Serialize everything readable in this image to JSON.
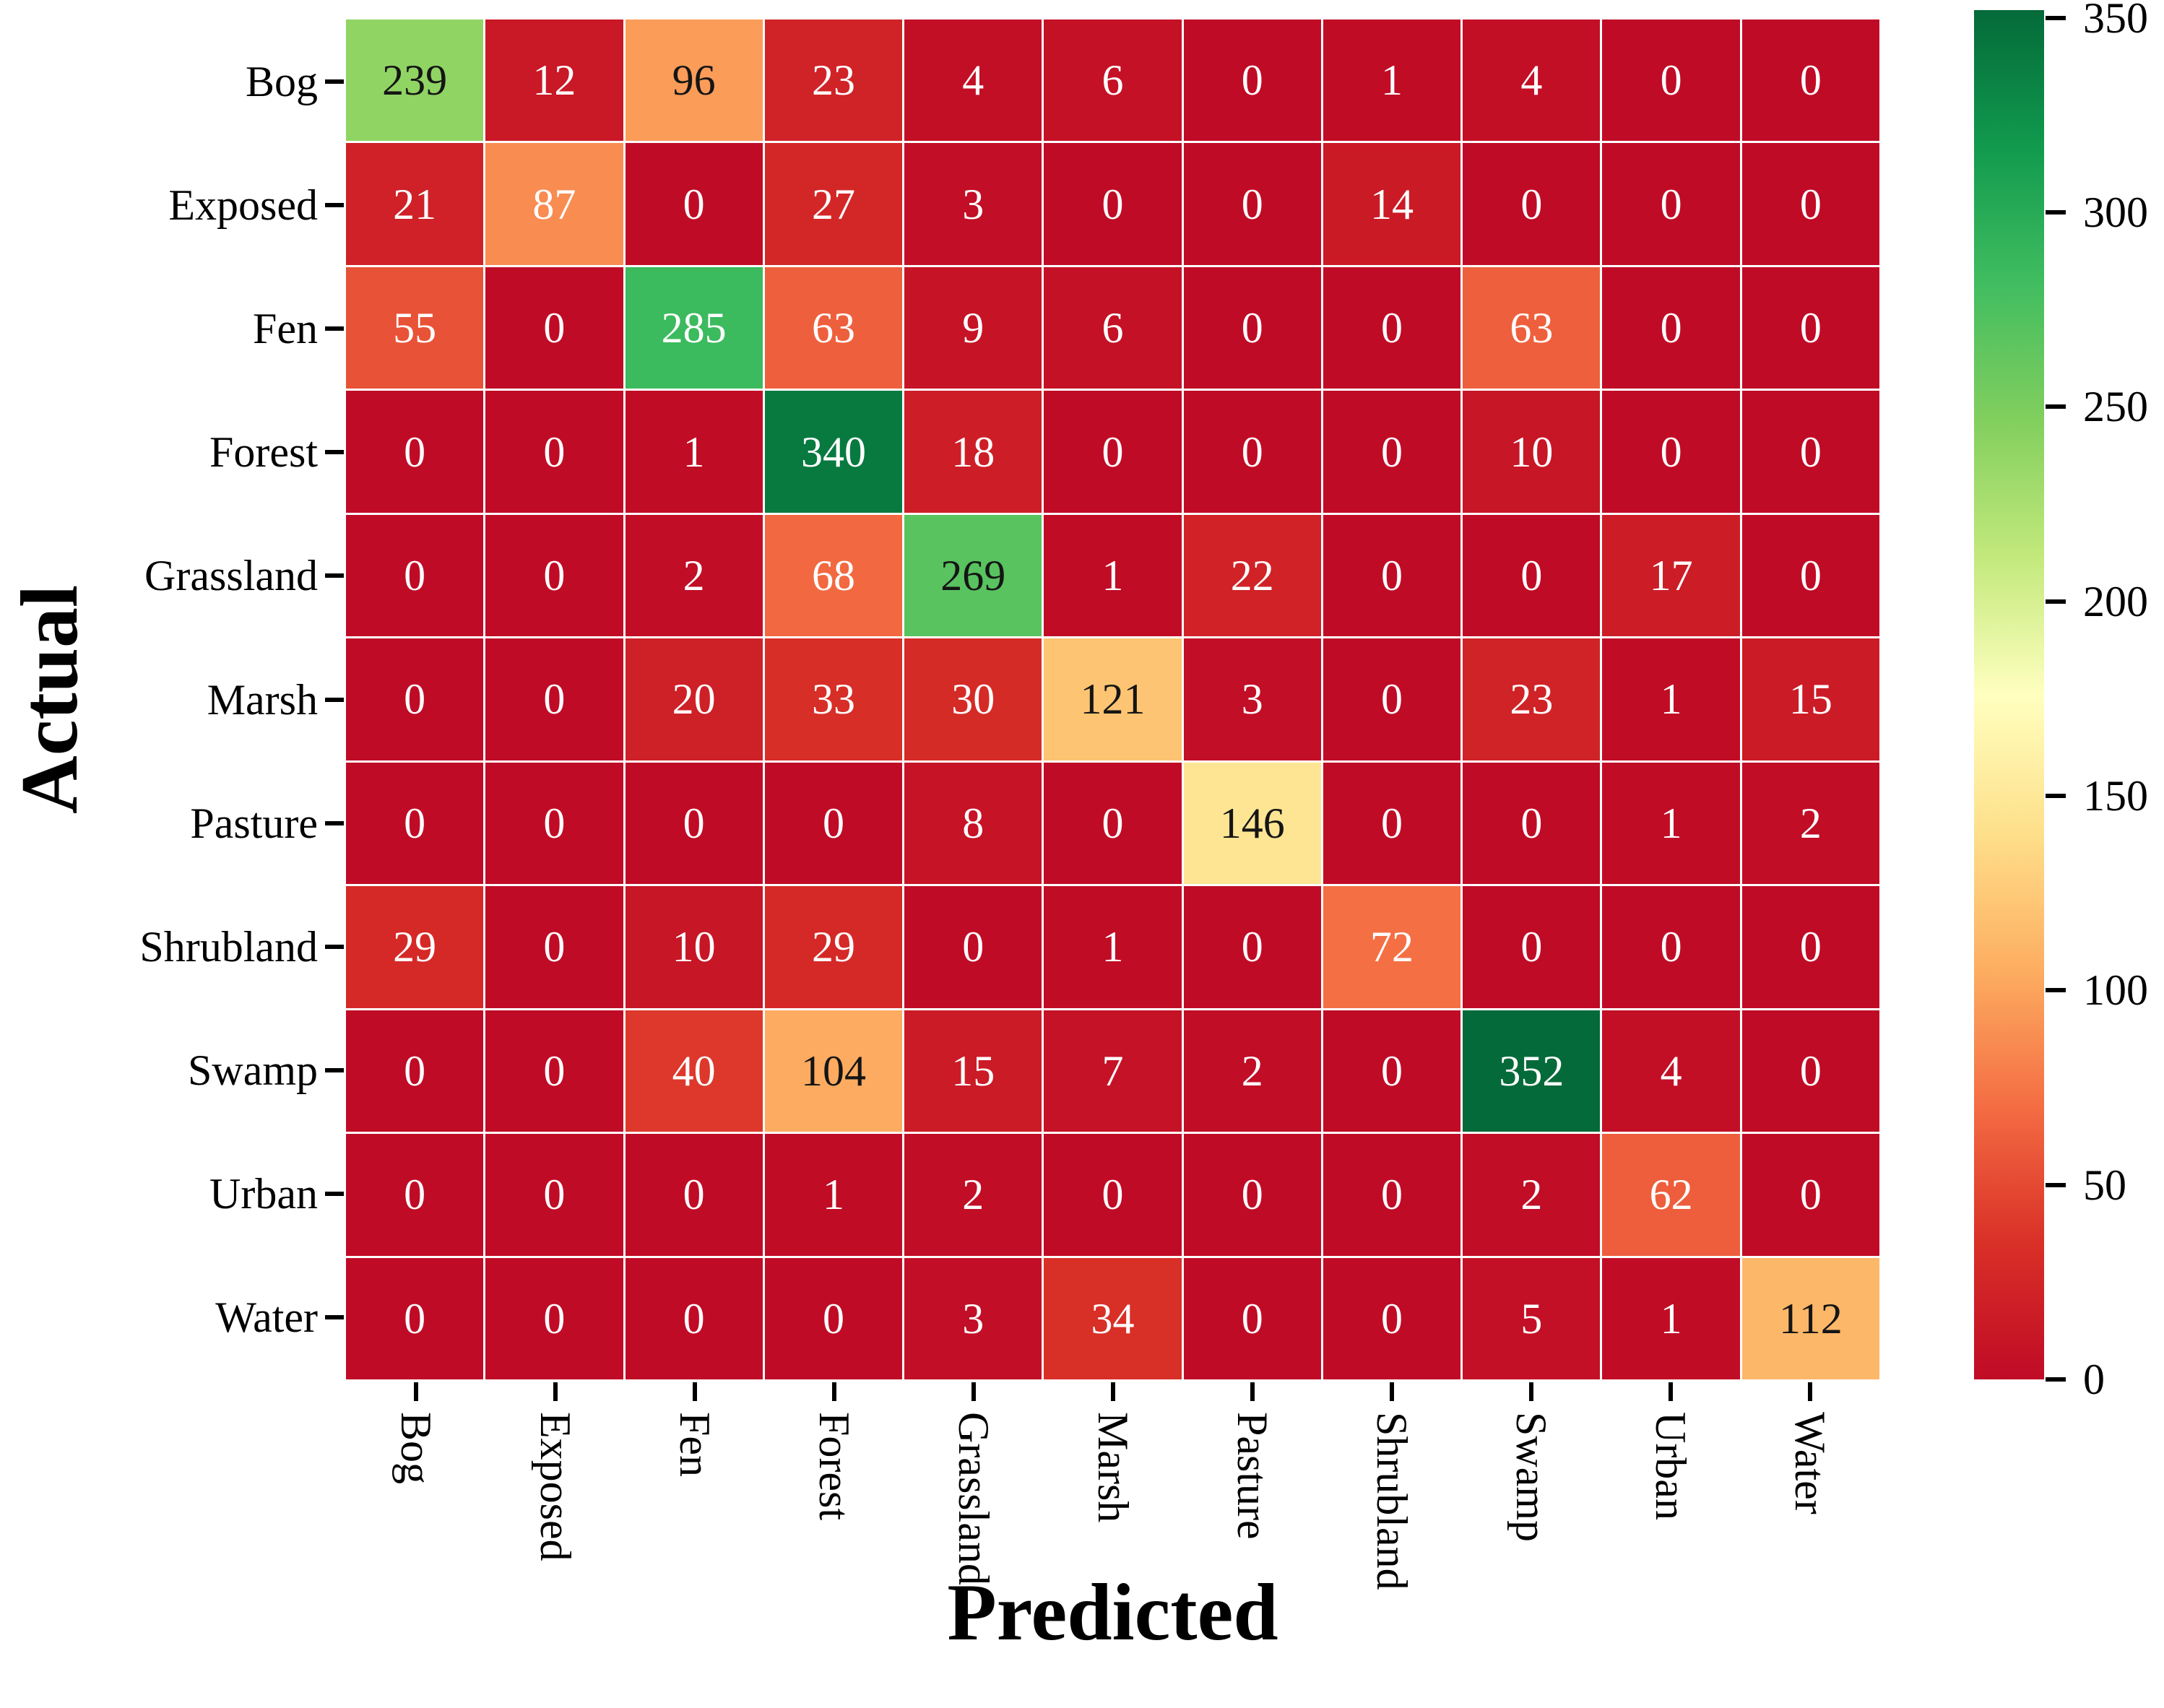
{
  "figure": {
    "background": "#ffffff"
  },
  "chart_data": {
    "type": "heatmap",
    "title": "",
    "xlabel": "Predicted",
    "ylabel": "Actual",
    "x_categories": [
      "Bog",
      "Exposed",
      "Fen",
      "Forest",
      "Grassland",
      "Marsh",
      "Pasture",
      "Shrubland",
      "Swamp",
      "Urban",
      "Water"
    ],
    "y_categories": [
      "Bog",
      "Exposed",
      "Fen",
      "Forest",
      "Grassland",
      "Marsh",
      "Pasture",
      "Shrubland",
      "Swamp",
      "Urban",
      "Water"
    ],
    "matrix": [
      [
        239,
        12,
        96,
        23,
        4,
        6,
        0,
        1,
        4,
        0,
        0
      ],
      [
        21,
        87,
        0,
        27,
        3,
        0,
        0,
        14,
        0,
        0,
        0
      ],
      [
        55,
        0,
        285,
        63,
        9,
        6,
        0,
        0,
        63,
        0,
        0
      ],
      [
        0,
        0,
        1,
        340,
        18,
        0,
        0,
        0,
        10,
        0,
        0
      ],
      [
        0,
        0,
        2,
        68,
        269,
        1,
        22,
        0,
        0,
        17,
        0
      ],
      [
        0,
        0,
        20,
        33,
        30,
        121,
        3,
        0,
        23,
        1,
        15
      ],
      [
        0,
        0,
        0,
        0,
        8,
        0,
        146,
        0,
        0,
        1,
        2
      ],
      [
        29,
        0,
        10,
        29,
        0,
        1,
        0,
        72,
        0,
        0,
        0
      ],
      [
        0,
        0,
        40,
        104,
        15,
        7,
        2,
        0,
        352,
        4,
        0
      ],
      [
        0,
        0,
        0,
        1,
        2,
        0,
        0,
        0,
        2,
        62,
        0
      ],
      [
        0,
        0,
        0,
        0,
        3,
        34,
        0,
        0,
        5,
        1,
        112
      ]
    ],
    "vmin": 0,
    "vmax": 352,
    "colorbar_ticks": [
      350,
      300,
      250,
      200,
      150,
      100,
      50,
      0
    ],
    "colormap": {
      "name": "RdYlGn",
      "anchors": [
        "#c00b26",
        "#d93027",
        "#f46d43",
        "#fdae61",
        "#fee08b",
        "#ffffbf",
        "#c3e97c",
        "#82cf5e",
        "#41bd60",
        "#119a4e",
        "#046a39"
      ]
    },
    "grid_color": "#ffffff",
    "cell_text_dark": "#151515",
    "cell_text_light": "#ffffff",
    "tick_color": "#000000",
    "legend_position": "right",
    "grid": "off"
  }
}
